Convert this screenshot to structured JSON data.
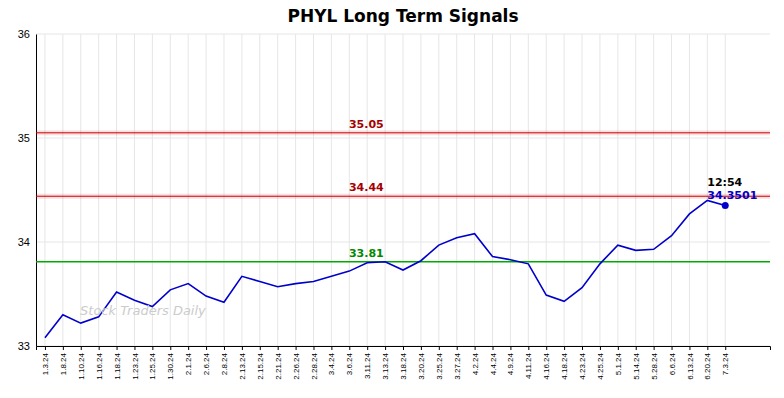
{
  "chart_data": {
    "type": "line",
    "title": "PHYL Long Term Signals",
    "watermark": "Stock Traders Daily",
    "categories": [
      "1.3.24",
      "1.8.24",
      "1.10.24",
      "1.16.24",
      "1.18.24",
      "1.23.24",
      "1.25.24",
      "1.30.24",
      "2.1.24",
      "2.6.24",
      "2.8.24",
      "2.13.24",
      "2.15.24",
      "2.21.24",
      "2.26.24",
      "2.28.24",
      "3.4.24",
      "3.6.24",
      "3.11.24",
      "3.13.24",
      "3.18.24",
      "3.20.24",
      "3.25.24",
      "3.27.24",
      "4.2.24",
      "4.4.24",
      "4.9.24",
      "4.11.24",
      "4.16.24",
      "4.18.24",
      "4.23.24",
      "4.25.24",
      "5.1.24",
      "5.14.24",
      "5.28.24",
      "6.6.24",
      "6.13.24",
      "6.20.24",
      "7.3.24"
    ],
    "series": [
      {
        "color": "#0000cc",
        "values": [
          33.08,
          33.3,
          33.22,
          33.28,
          33.52,
          33.44,
          33.38,
          33.54,
          33.6,
          33.48,
          33.42,
          33.67,
          33.62,
          33.57,
          33.6,
          33.62,
          33.67,
          33.72,
          33.8,
          33.81,
          33.73,
          33.82,
          33.97,
          34.04,
          34.08,
          33.86,
          33.83,
          33.79,
          33.49,
          33.43,
          33.56,
          33.79,
          33.97,
          33.92,
          33.93,
          34.06,
          34.27,
          34.4,
          34.3501
        ]
      }
    ],
    "hlines": [
      {
        "value": 35.05,
        "label": "35.05",
        "color": "#cc0000"
      },
      {
        "value": 34.44,
        "label": "34.44",
        "color": "#cc0000"
      },
      {
        "value": 33.81,
        "label": "33.81",
        "color": "#00aa00"
      }
    ],
    "last_point": {
      "label": "12:54",
      "value": 34.3501,
      "value_label": "34.3501"
    },
    "ylim": [
      33.0,
      36.0
    ],
    "yticks": [
      33,
      34,
      35,
      36
    ],
    "grid": true
  }
}
